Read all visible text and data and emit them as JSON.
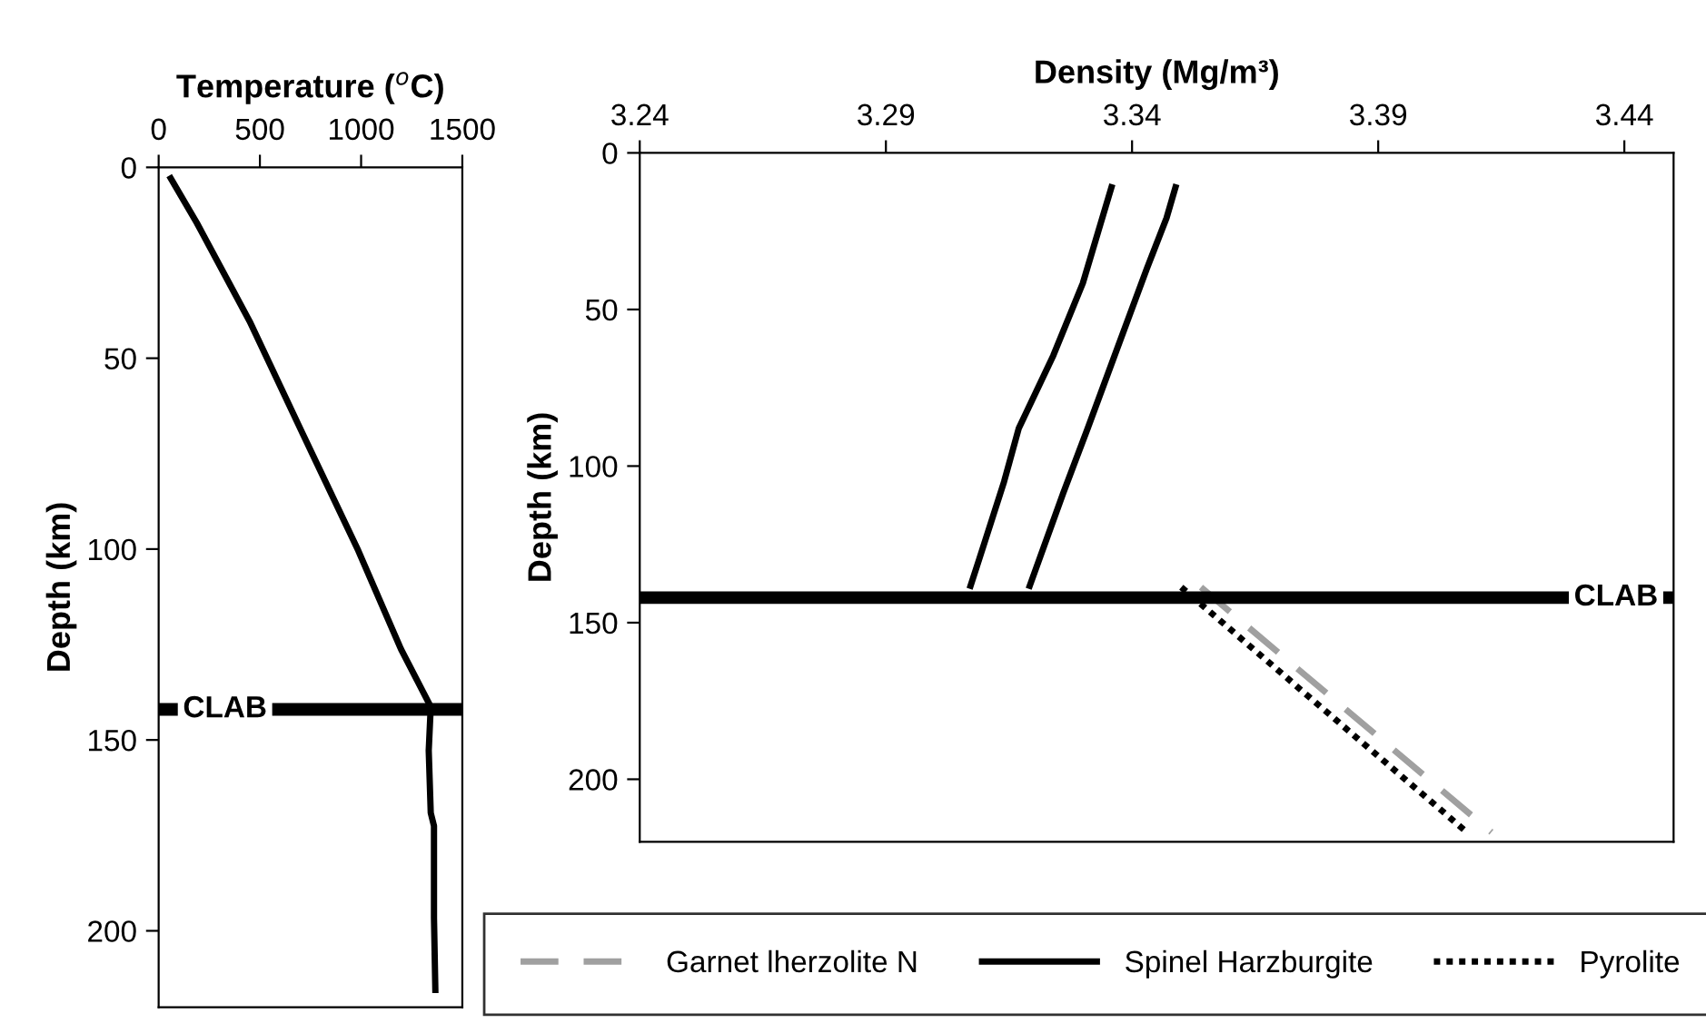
{
  "chart_data": [
    {
      "type": "line",
      "xlabel": "Temperature ($^{o}$C)",
      "ylabel": "Depth (km)",
      "xlim": [
        0,
        1500
      ],
      "xticks": [
        0,
        500,
        1000,
        1500
      ],
      "ylim": [
        220,
        0
      ],
      "yticks": [
        0,
        50,
        100,
        150,
        200
      ],
      "grid": false,
      "legend": false,
      "series": [
        {
          "color": "#000000",
          "line_style": "solid",
          "x": [
            52,
            189,
            449,
            709,
            986,
            1197,
            1344,
            1334,
            1344,
            1360,
            1360,
            1367
          ],
          "values": [
            2.2,
            14.6,
            40.3,
            69.5,
            100.4,
            126.2,
            141.3,
            152.8,
            169.1,
            172.5,
            196.6,
            216.3
          ]
        }
      ],
      "ref_lines": [
        {
          "axis": "y",
          "value": 142,
          "label": "CLAB",
          "color": "#000000"
        }
      ]
    },
    {
      "type": "line",
      "xlabel": "Density (Mg/m³)",
      "ylabel": "Depth (km)",
      "xlim": [
        3.24,
        3.45
      ],
      "xticks": [
        3.24,
        3.29,
        3.34,
        3.39,
        3.44
      ],
      "ylim": [
        220,
        0
      ],
      "yticks": [
        0,
        50,
        100,
        150,
        200
      ],
      "grid": false,
      "legend": "bottom",
      "series": [
        {
          "name": "Garnet lherzolite N",
          "color": "#a0a0a0",
          "line_style": "dashed",
          "x": [
            3.354,
            3.413
          ],
          "values": [
            138.7,
            216.9
          ]
        },
        {
          "name": "Spinel Harzburgite",
          "color": "#000000",
          "line_style": "solid",
          "x": [
            3.336,
            3.33,
            3.324,
            3.317,
            3.314,
            3.309,
            3.307
          ],
          "values": [
            10,
            41.6,
            64.7,
            87.9,
            105,
            129.5,
            139.2
          ]
        },
        {
          "color": "#000000",
          "line_style": "solid",
          "x": [
            3.349,
            3.347,
            3.343,
            3.337,
            3.331,
            3.326,
            3.319
          ],
          "values": [
            10,
            20.8,
            37,
            62.4,
            87.9,
            108.7,
            139.2
          ]
        },
        {
          "name": "Pyrolite",
          "color": "#000000",
          "line_style": "dotted",
          "x": [
            3.35,
            3.408
          ],
          "values": [
            138.7,
            216.9
          ]
        }
      ],
      "ref_lines": [
        {
          "axis": "y",
          "value": 142,
          "label": "CLAB",
          "color": "#000000"
        }
      ]
    }
  ]
}
